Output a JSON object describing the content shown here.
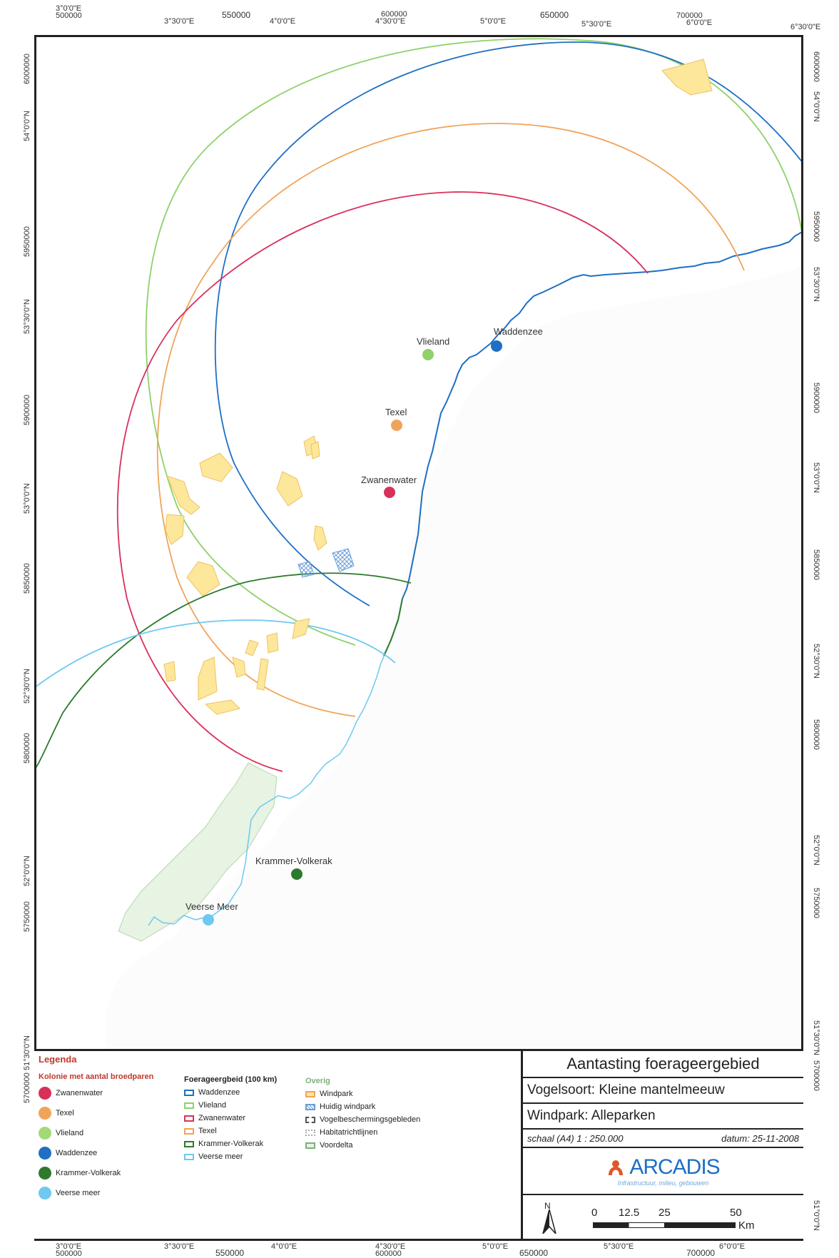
{
  "graticule": {
    "top_lon": [
      "3°0'0\"E",
      "3°30'0\"E",
      "4°0'0\"E",
      "4°30'0\"E",
      "5°0'0\"E",
      "5°30'0\"E",
      "6°0'0\"E",
      "6°30'0\"E"
    ],
    "top_x": [
      "500000",
      "550000",
      "600000",
      "650000",
      "700000"
    ],
    "bottom_lon": [
      "3°0'0\"E",
      "3°30'0\"E",
      "4°0'0\"E",
      "4°30'0\"E",
      "5°0'0\"E",
      "5°30'0\"E",
      "6°0'0\"E"
    ],
    "bottom_x": [
      "500000",
      "550000",
      "600000",
      "650000",
      "700000"
    ],
    "left_y": [
      "6000000",
      "5950000",
      "5900000",
      "5850000",
      "5800000",
      "5750000",
      "5700000"
    ],
    "left_lat": [
      "54°0'0\"N",
      "53°30'0\"N",
      "53°0'0\"N",
      "52°30'0\"N",
      "52°0'0\"N",
      "51°30'0\"N"
    ],
    "right_y": [
      "6000000",
      "5950000",
      "5900000",
      "5850000",
      "5800000",
      "5750000",
      "5700000"
    ],
    "right_lat": [
      "54°0'0\"N",
      "53°30'0\"N",
      "53°0'0\"N",
      "52°30'0\"N",
      "52°0'0\"N",
      "51°30'0\"N",
      "51°0'0\"N"
    ]
  },
  "map": {
    "colonies": [
      {
        "label": "Waddenzee",
        "color": "#1f6fc4"
      },
      {
        "label": "Vlieland",
        "color": "#8fd16a"
      },
      {
        "label": "Texel",
        "color": "#f0a45a"
      },
      {
        "label": "Zwanenwater",
        "color": "#d9305a"
      },
      {
        "label": "Krammer-Volkerak",
        "color": "#2d7a2d"
      },
      {
        "label": "Veerse Meer",
        "color": "#6ec8f0"
      }
    ]
  },
  "legend": {
    "title": "Legenda",
    "colonies_header": "Kolonie met aantal broedparen",
    "colonies": [
      {
        "label": "Zwanenwater",
        "color": "#d9305a"
      },
      {
        "label": "Texel",
        "color": "#f0a45a"
      },
      {
        "label": "Vlieland",
        "color": "#a3d977"
      },
      {
        "label": "Waddenzee",
        "color": "#1f6fc4"
      },
      {
        "label": "Krammer-Volkerak",
        "color": "#2d7a2d"
      },
      {
        "label": "Veerse meer",
        "color": "#6ec8f0"
      }
    ],
    "forage_header": "Foerageergbeid (100 km)",
    "forage": [
      {
        "label": "Waddenzee",
        "color": "#1f6fc4"
      },
      {
        "label": "Vlieland",
        "color": "#8fd16a"
      },
      {
        "label": "Zwanenwater",
        "color": "#d9305a"
      },
      {
        "label": "Texel",
        "color": "#f0a45a"
      },
      {
        "label": "Krammer-Volkerak",
        "color": "#2d7a2d"
      },
      {
        "label": "Veerse meer",
        "color": "#6ec8f0"
      }
    ],
    "other_header": "Overig",
    "other": [
      {
        "label": "Windpark",
        "color": "#f0a45a"
      },
      {
        "label": "Huidig windpark",
        "color": "#6a9ed8"
      },
      {
        "label": "Vogelbeschermingsgebleden",
        "color": "#555555"
      },
      {
        "label": "Habitatrichtlijnen",
        "color": "#aaaaaa"
      },
      {
        "label": "Voordelta",
        "color": "#7bb07b"
      }
    ]
  },
  "titleblock": {
    "title": "Aantasting foerageergebied",
    "species": "Vogelsoort: Kleine mantelmeeuw",
    "windpark": "Windpark: Alleparken",
    "scale": "schaal (A4) 1 : 250.000",
    "date": "datum: 25-11-2008",
    "company": "ARCADIS",
    "tagline": "Infrastructuur, milieu, gebouwen",
    "north": "N",
    "scalebar": [
      "0",
      "12.5",
      "25",
      "50"
    ],
    "scalebar_unit": "Km"
  }
}
